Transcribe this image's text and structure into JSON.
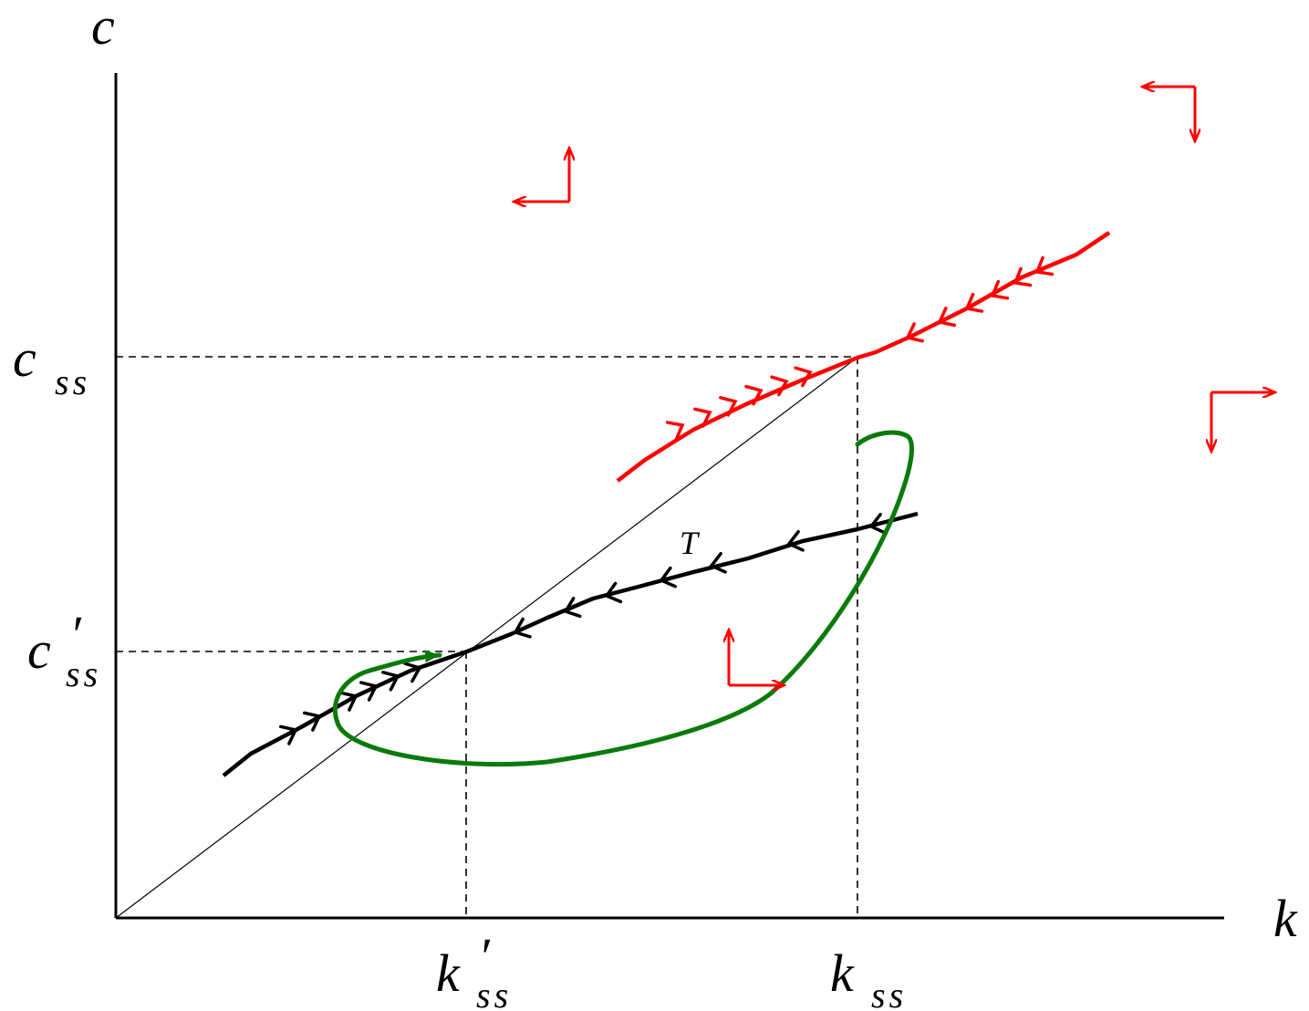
{
  "axes": {
    "y_label": "c",
    "x_label": "k"
  },
  "ticks": {
    "c_ss": {
      "main": "c",
      "sub": "ss"
    },
    "c_ss_prime": {
      "main": "c",
      "prime": "′",
      "sub": "ss"
    },
    "k_ss_prime": {
      "main": "k",
      "prime": "′",
      "sub": "ss"
    },
    "k_ss": {
      "main": "k",
      "sub": "ss"
    }
  },
  "curve_labels": {
    "new_saddle_path": "T"
  },
  "colors": {
    "axis": "#000000",
    "old_saddle_path": "#ff0000",
    "new_saddle_path": "#000000",
    "adjustment_path": "#0a7a0a",
    "direction_arrows": "#ff0000"
  },
  "icons": {
    "direction_arrows": "arrow-pair-icon",
    "path_arrows": "chevron-icon"
  }
}
